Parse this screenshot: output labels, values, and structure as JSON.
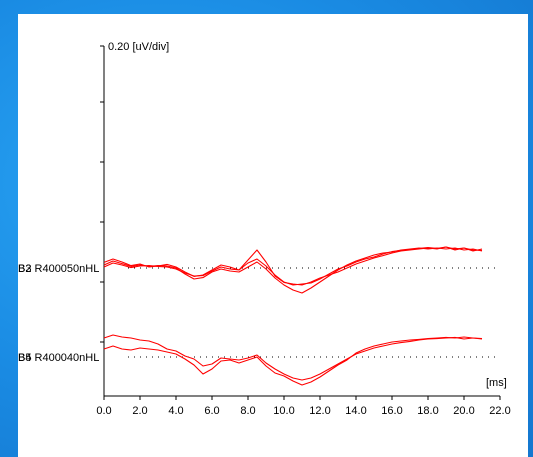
{
  "chart_data": {
    "type": "line",
    "ylabel": "0.20 [uV/div]",
    "xlabel": "[ms]",
    "xlim": [
      0,
      22
    ],
    "x_ticks": [
      0,
      2,
      4,
      6,
      8,
      10,
      12,
      14,
      16,
      18,
      20,
      22
    ],
    "x_tick_labels": [
      "0.0",
      "2.0",
      "4.0",
      "6.0",
      "8.0",
      "10.0",
      "12.0",
      "14.0",
      "16.0",
      "18.0",
      "20.0",
      "22.0"
    ],
    "grid": false,
    "trace_color": "#ff0000",
    "baseline_color": "#000000",
    "groups": [
      {
        "label": "B3 R400050nHL",
        "label_overlay": "B2",
        "traces": [
          {
            "x": [
              0.0,
              0.5,
              1.0,
              1.5,
              2.0,
              2.5,
              3.0,
              3.5,
              4.0,
              4.5,
              5.0,
              5.5,
              6.0,
              6.5,
              7.0,
              7.5,
              8.0,
              8.5,
              9.0,
              9.5,
              10.0,
              10.5,
              11.0,
              11.5,
              12.0,
              12.5,
              13.0,
              13.5,
              14.0,
              14.5,
              15.0,
              15.5,
              16.0,
              16.5,
              17.0,
              17.5,
              18.0,
              18.5,
              19.0,
              19.5,
              20.0,
              20.5,
              21.0
            ],
            "y": [
              0.28,
              0.45,
              0.3,
              0.12,
              0.2,
              0.05,
              0.1,
              0.18,
              0.05,
              -0.2,
              -0.42,
              -0.35,
              -0.1,
              0.15,
              0.05,
              -0.1,
              0.4,
              0.9,
              0.3,
              -0.4,
              -0.72,
              -0.8,
              -0.85,
              -0.7,
              -0.5,
              -0.35,
              -0.2,
              0.0,
              0.2,
              0.35,
              0.5,
              0.62,
              0.75,
              0.85,
              0.9,
              0.95,
              1.0,
              0.95,
              1.05,
              0.9,
              1.0,
              0.85,
              0.95
            ]
          },
          {
            "x": [
              0.0,
              0.5,
              1.0,
              1.5,
              2.0,
              2.5,
              3.0,
              3.5,
              4.0,
              4.5,
              5.0,
              5.5,
              6.0,
              6.5,
              7.0,
              7.5,
              8.0,
              8.5,
              9.0,
              9.5,
              10.0,
              10.5,
              11.0,
              11.5,
              12.0,
              12.5,
              13.0,
              13.5,
              14.0,
              14.5,
              15.0,
              15.5,
              16.0,
              16.5,
              17.0,
              17.5,
              18.0,
              18.5,
              19.0,
              19.5,
              20.0,
              20.5,
              21.0
            ],
            "y": [
              0.15,
              0.35,
              0.22,
              0.08,
              0.15,
              0.08,
              0.12,
              0.1,
              0.0,
              -0.3,
              -0.55,
              -0.48,
              -0.2,
              -0.05,
              -0.15,
              -0.2,
              0.05,
              0.3,
              -0.05,
              -0.5,
              -0.85,
              -1.1,
              -1.25,
              -1.0,
              -0.7,
              -0.4,
              -0.1,
              0.15,
              0.35,
              0.5,
              0.65,
              0.75,
              0.8,
              0.9,
              0.95,
              1.0,
              0.95,
              1.0,
              0.95,
              1.0,
              0.9,
              0.95,
              0.85
            ]
          },
          {
            "x": [
              0.0,
              0.5,
              1.0,
              1.5,
              2.0,
              2.5,
              3.0,
              3.5,
              4.0,
              4.5,
              5.0,
              5.5,
              6.0,
              6.5,
              7.0,
              7.5,
              8.0,
              8.5,
              9.0,
              9.5,
              10.0,
              10.5,
              11.0,
              11.5,
              12.0,
              12.5,
              13.0,
              13.5,
              14.0,
              14.5,
              15.0,
              15.5,
              16.0,
              16.5,
              17.0,
              17.5,
              18.0,
              18.5,
              19.0,
              19.5,
              20.0,
              20.5,
              21.0
            ],
            "y": [
              0.05,
              0.25,
              0.15,
              0.02,
              0.1,
              0.12,
              0.08,
              0.05,
              -0.05,
              -0.25,
              -0.4,
              -0.38,
              -0.15,
              0.05,
              -0.05,
              -0.1,
              0.25,
              0.45,
              0.1,
              -0.35,
              -0.7,
              -0.85,
              -0.8,
              -0.75,
              -0.55,
              -0.3,
              -0.05,
              0.1,
              0.3,
              0.45,
              0.55,
              0.7,
              0.82,
              0.88,
              0.92,
              0.98,
              1.02,
              0.98,
              1.05,
              0.95,
              1.0,
              0.9,
              0.88
            ]
          }
        ]
      },
      {
        "label": "B5 R400040nHL",
        "label_overlay": "B4",
        "traces": [
          {
            "x": [
              0.0,
              0.5,
              1.0,
              1.5,
              2.0,
              2.5,
              3.0,
              3.5,
              4.0,
              4.5,
              5.0,
              5.5,
              6.0,
              6.5,
              7.0,
              7.5,
              8.0,
              8.5,
              9.0,
              9.5,
              10.0,
              10.5,
              11.0,
              11.5,
              12.0,
              12.5,
              13.0,
              13.5,
              14.0,
              14.5,
              15.0,
              15.5,
              16.0,
              16.5,
              17.0,
              17.5,
              18.0,
              18.5,
              19.0,
              19.5,
              20.0,
              20.5,
              21.0
            ],
            "y": [
              0.95,
              1.1,
              1.0,
              0.95,
              0.85,
              0.8,
              0.65,
              0.4,
              0.3,
              0.05,
              -0.1,
              -0.45,
              -0.35,
              -0.05,
              -0.1,
              -0.15,
              -0.05,
              0.1,
              -0.3,
              -0.6,
              -0.85,
              -1.05,
              -1.15,
              -1.05,
              -0.85,
              -0.6,
              -0.35,
              -0.1,
              0.15,
              0.3,
              0.45,
              0.55,
              0.65,
              0.72,
              0.78,
              0.85,
              0.9,
              0.92,
              0.95,
              0.98,
              0.9,
              0.95,
              0.9
            ]
          },
          {
            "x": [
              0.0,
              0.5,
              1.0,
              1.5,
              2.0,
              2.5,
              3.0,
              3.5,
              4.0,
              4.5,
              5.0,
              5.5,
              6.0,
              6.5,
              7.0,
              7.5,
              8.0,
              8.5,
              9.0,
              9.5,
              10.0,
              10.5,
              11.0,
              11.5,
              12.0,
              12.5,
              13.0,
              13.5,
              14.0,
              14.5,
              15.0,
              15.5,
              16.0,
              16.5,
              17.0,
              17.5,
              18.0,
              18.5,
              19.0,
              19.5,
              20.0,
              20.5,
              21.0
            ],
            "y": [
              0.4,
              0.55,
              0.4,
              0.35,
              0.45,
              0.4,
              0.35,
              0.25,
              0.15,
              -0.1,
              -0.4,
              -0.85,
              -0.6,
              -0.2,
              -0.15,
              -0.3,
              -0.15,
              0.0,
              -0.45,
              -0.8,
              -0.95,
              -1.2,
              -1.4,
              -1.25,
              -1.0,
              -0.7,
              -0.4,
              -0.15,
              0.2,
              0.4,
              0.55,
              0.65,
              0.75,
              0.8,
              0.85,
              0.88,
              0.92,
              0.95,
              0.98,
              0.95,
              1.0,
              0.95,
              0.92
            ]
          }
        ]
      }
    ]
  }
}
